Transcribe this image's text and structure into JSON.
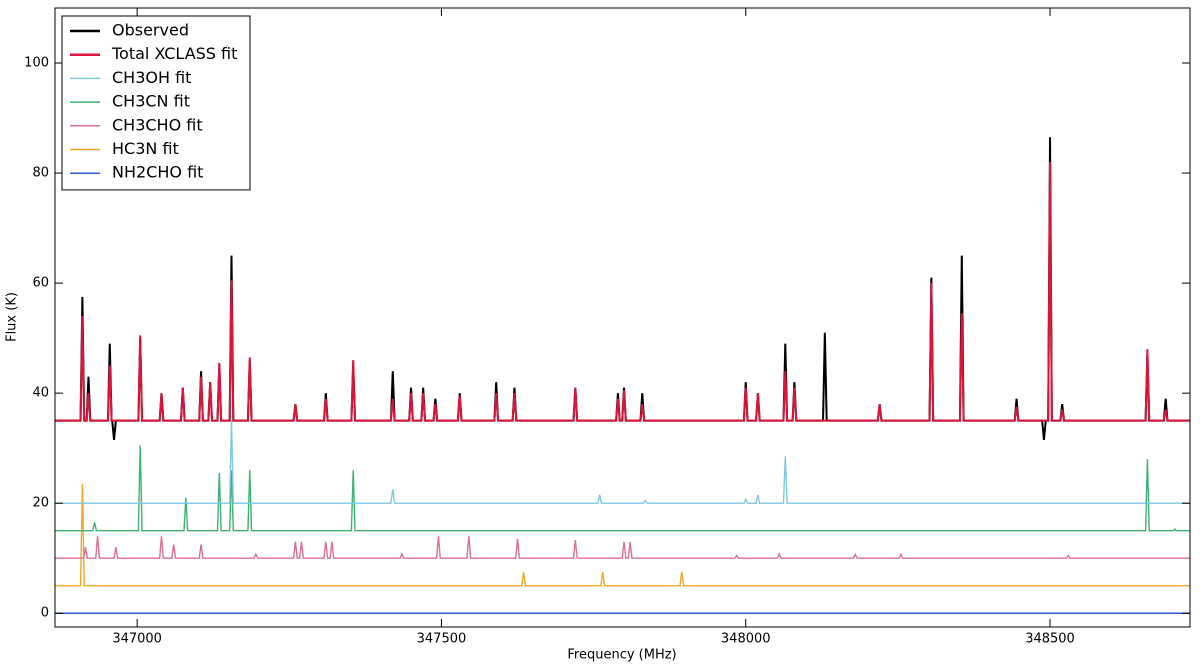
{
  "chart_data": {
    "type": "line",
    "x_label": "Frequency (MHz)",
    "y_label": "Flux (K)",
    "xlim": [
      346865,
      348730
    ],
    "ylim": [
      -2.5,
      110
    ],
    "xticks": [
      347000,
      347500,
      348000,
      348500
    ],
    "yticks": [
      0,
      20,
      40,
      60,
      80,
      100
    ],
    "legend": "upper left",
    "series": [
      {
        "name": "Observed",
        "color": "#000000",
        "x": [
          346865,
          346907,
          346910,
          346913,
          346917,
          346920,
          346923,
          346952,
          346955,
          346958,
          346959,
          346962,
          346965,
          347002,
          347005,
          347008,
          347037,
          347040,
          347043,
          347072,
          347075,
          347078,
          347102,
          347105,
          347108,
          347117,
          347120,
          347123,
          347132,
          347135,
          347138,
          347152,
          347155,
          347158,
          347182,
          347185,
          347188,
          347257,
          347260,
          347263,
          347307,
          347310,
          347313,
          347352,
          347355,
          347358,
          347417,
          347420,
          347423,
          347447,
          347450,
          347453,
          347467,
          347470,
          347473,
          347487,
          347490,
          347493,
          347527,
          347530,
          347533,
          347587,
          347590,
          347593,
          347617,
          347620,
          347623,
          347717,
          347720,
          347723,
          347787,
          347790,
          347793,
          347797,
          347800,
          347803,
          347827,
          347830,
          347833,
          347997,
          348000,
          348003,
          348017,
          348020,
          348023,
          348062,
          348065,
          348068,
          348077,
          348080,
          348083,
          348127,
          348130,
          348133,
          348217,
          348220,
          348223,
          348302,
          348305,
          348308,
          348352,
          348355,
          348358,
          348442,
          348445,
          348448,
          348487,
          348490,
          348493,
          348497,
          348500,
          348503,
          348517,
          348520,
          348523,
          348657,
          348660,
          348663,
          348687,
          348690,
          348693,
          348730
        ],
        "values": [
          35,
          35,
          57.5,
          35,
          35,
          43,
          35,
          35,
          49,
          35,
          35,
          31.5,
          35,
          35,
          50,
          35,
          35,
          40,
          35,
          35,
          41,
          35,
          35,
          44,
          35,
          35,
          42,
          35,
          35,
          45,
          35,
          35,
          65,
          35,
          35,
          46,
          35,
          35,
          38,
          35,
          35,
          40,
          35,
          35,
          45,
          35,
          35,
          44,
          35,
          35,
          41,
          35,
          35,
          41,
          35,
          35,
          39,
          35,
          35,
          40,
          35,
          35,
          42,
          35,
          35,
          41,
          35,
          35,
          41,
          35,
          35,
          40,
          35,
          35,
          41,
          35,
          35,
          40,
          35,
          35,
          42,
          35,
          35,
          40,
          35,
          35,
          49,
          35,
          35,
          42,
          35,
          35,
          51,
          35,
          35,
          38,
          35,
          35,
          61,
          35,
          35,
          65,
          35,
          35,
          39,
          35,
          35,
          31.5,
          35,
          35,
          86.5,
          35,
          35,
          38,
          35,
          35,
          47,
          35,
          35,
          39,
          35,
          35
        ]
      },
      {
        "name": "Total XCLASS fit",
        "color": "#dc143c",
        "x": [
          346865,
          346907,
          346910,
          346913,
          346917,
          346920,
          346923,
          346952,
          346955,
          346958,
          347002,
          347005,
          347008,
          347037,
          347040,
          347043,
          347072,
          347075,
          347078,
          347102,
          347105,
          347108,
          347117,
          347120,
          347123,
          347132,
          347135,
          347138,
          347152,
          347155,
          347158,
          347182,
          347185,
          347188,
          347257,
          347260,
          347263,
          347307,
          347310,
          347313,
          347352,
          347355,
          347358,
          347417,
          347420,
          347423,
          347447,
          347450,
          347453,
          347467,
          347470,
          347473,
          347487,
          347490,
          347493,
          347527,
          347530,
          347533,
          347587,
          347590,
          347593,
          347617,
          347620,
          347623,
          347717,
          347720,
          347723,
          347787,
          347790,
          347793,
          347797,
          347800,
          347803,
          347827,
          347830,
          347833,
          347997,
          348000,
          348003,
          348017,
          348020,
          348023,
          348062,
          348065,
          348068,
          348077,
          348080,
          348083,
          348217,
          348220,
          348223,
          348302,
          348305,
          348308,
          348352,
          348355,
          348358,
          348442,
          348445,
          348448,
          348497,
          348500,
          348503,
          348517,
          348520,
          348523,
          348657,
          348660,
          348663,
          348687,
          348690,
          348693,
          348730
        ],
        "values": [
          35,
          35,
          54,
          35,
          35,
          40,
          35,
          35,
          45,
          35,
          35,
          50.5,
          35,
          35,
          40,
          35,
          35,
          41,
          35,
          35,
          43,
          35,
          35,
          42,
          35,
          35,
          45.5,
          35,
          35,
          60.5,
          35,
          35,
          46.5,
          35,
          35,
          38,
          35,
          35,
          39,
          35,
          35,
          46,
          35,
          35,
          39,
          35,
          35,
          40,
          35,
          35,
          40,
          35,
          35,
          38,
          35,
          35,
          39.5,
          35,
          35,
          40,
          35,
          35,
          40,
          35,
          35,
          41,
          35,
          35,
          39,
          35,
          35,
          40.5,
          35,
          35,
          38,
          35,
          35,
          41,
          35,
          35,
          40,
          35,
          35,
          44,
          35,
          35,
          41,
          35,
          35,
          38,
          35,
          35,
          60,
          35,
          35,
          54.5,
          35,
          35,
          37.5,
          35,
          35,
          82,
          35,
          35,
          37,
          35,
          35,
          48,
          35,
          35,
          37,
          35,
          35
        ]
      },
      {
        "name": "CH3OH fit",
        "color": "#7ec8e3",
        "x": [
          346865,
          347152,
          347155,
          347158,
          347417,
          347420,
          347423,
          347757,
          347760,
          347763,
          347832,
          347835,
          347838,
          347997,
          348000,
          348003,
          348017,
          348020,
          348023,
          348062,
          348065,
          348068,
          348730
        ],
        "values": [
          20,
          20,
          35,
          20,
          20,
          22.5,
          20,
          20,
          21.5,
          20,
          20,
          20.5,
          20,
          20,
          20.7,
          20,
          20,
          21.5,
          20,
          20,
          28.5,
          20,
          20
        ]
      },
      {
        "name": "CH3CN fit",
        "color": "#3cb371",
        "x": [
          346865,
          346927,
          346930,
          346933,
          347002,
          347005,
          347008,
          347077,
          347080,
          347083,
          347132,
          347135,
          347138,
          347152,
          347155,
          347158,
          347182,
          347185,
          347188,
          347352,
          347355,
          347358,
          348657,
          348660,
          348663,
          348702,
          348705,
          348708,
          348730
        ],
        "values": [
          15,
          15,
          16.5,
          15,
          15,
          30.5,
          15,
          15,
          21,
          15,
          15,
          25.5,
          15,
          15,
          26,
          15,
          15,
          26,
          15,
          15,
          26,
          15,
          15,
          28,
          15,
          15,
          15.3,
          15,
          15
        ]
      },
      {
        "name": "CH3CHO fit",
        "color": "#db7093",
        "x": [
          346865,
          346912,
          346915,
          346918,
          346932,
          346935,
          346938,
          346962,
          346965,
          346968,
          347037,
          347040,
          347043,
          347057,
          347060,
          347063,
          347102,
          347105,
          347108,
          347192,
          347195,
          347198,
          347257,
          347260,
          347263,
          347267,
          347270,
          347273,
          347307,
          347310,
          347313,
          347317,
          347320,
          347323,
          347432,
          347435,
          347438,
          347492,
          347495,
          347498,
          347542,
          347545,
          347548,
          347622,
          347625,
          347628,
          347717,
          347720,
          347723,
          347797,
          347800,
          347803,
          347807,
          347810,
          347813,
          347982,
          347985,
          347988,
          348052,
          348055,
          348058,
          348177,
          348180,
          348183,
          348252,
          348255,
          348258,
          348527,
          348530,
          348533,
          348730
        ],
        "values": [
          10,
          10,
          12,
          10,
          10,
          14,
          10,
          10,
          12,
          10,
          10,
          14,
          10,
          10,
          12.5,
          10,
          10,
          12.5,
          10,
          10,
          10.7,
          10,
          10,
          13,
          10,
          10,
          13,
          10,
          10,
          13,
          10,
          10,
          13,
          10,
          10,
          10.8,
          10,
          10,
          14,
          10,
          10,
          14,
          10,
          10,
          13.5,
          10,
          10,
          13.3,
          10,
          10,
          13,
          10,
          10,
          13,
          10,
          10,
          10.5,
          10,
          10,
          10.8,
          10,
          10,
          10.7,
          10,
          10,
          10.7,
          10,
          10,
          10.5,
          10,
          10
        ]
      },
      {
        "name": "HC3N fit",
        "color": "#f5a623",
        "x": [
          346865,
          346907,
          346910,
          346913,
          347632,
          347635,
          347638,
          347762,
          347765,
          347768,
          347892,
          347895,
          347898,
          348730
        ],
        "values": [
          5,
          5,
          23.5,
          5,
          5,
          7.5,
          5,
          5,
          7.5,
          5,
          5,
          7.5,
          5,
          5
        ]
      },
      {
        "name": "NH2CHO fit",
        "color": "#2c5fd6",
        "x": [
          346865,
          348730
        ],
        "values": [
          0,
          0
        ]
      }
    ]
  }
}
